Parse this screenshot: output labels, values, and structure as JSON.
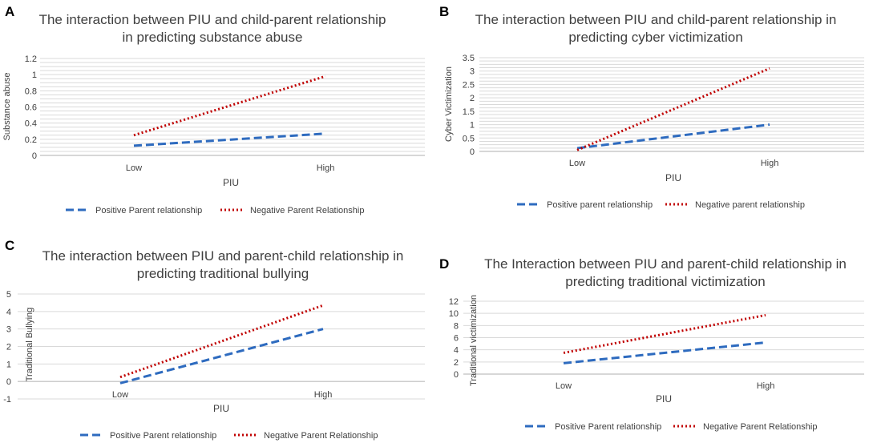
{
  "colors": {
    "positive": "#2e6bbf",
    "negative": "#c00000",
    "grid": "#d9d9d9",
    "axis": "#bfbfbf"
  },
  "chart_data": [
    {
      "panel": "A",
      "type": "line",
      "title_lines": [
        "The interaction between PIU and child-parent relationship",
        "in predicting substance abuse"
      ],
      "xlabel": "PIU",
      "ylabel": "Substance abuse",
      "categories": [
        "Low",
        "High"
      ],
      "yticks": [
        "0",
        "0.2",
        "0.4",
        "0.6",
        "0.8",
        "1",
        "1.2"
      ],
      "ylim": [
        0,
        1.2
      ],
      "grid_step": 0.05,
      "series": [
        {
          "name": "Positive Parent relationship",
          "style": "dashed",
          "values": [
            0.12,
            0.27
          ]
        },
        {
          "name": "Negative Parent Relationship",
          "style": "dotted",
          "values": [
            0.25,
            0.98
          ]
        }
      ]
    },
    {
      "panel": "B",
      "type": "line",
      "title_lines": [
        "The interaction between PIU and child-parent relationship in",
        "predicting cyber victimization"
      ],
      "xlabel": "PIU",
      "ylabel": "Cyber Victimization",
      "categories": [
        "Low",
        "High"
      ],
      "yticks": [
        "0",
        "0.5",
        "1",
        "1.5",
        "2",
        "2.5",
        "3",
        "3.5"
      ],
      "ylim": [
        0,
        3.5
      ],
      "grid_step": 0.125,
      "series": [
        {
          "name": "Positive parent relationship",
          "style": "dashed",
          "values": [
            0.12,
            1.0
          ]
        },
        {
          "name": "Negative parent relationship",
          "style": "dotted",
          "values": [
            0.05,
            3.1
          ]
        }
      ]
    },
    {
      "panel": "C",
      "type": "line",
      "title_lines": [
        "The interaction between PIU and parent-child relationship in",
        "predicting traditional bullying"
      ],
      "xlabel": "PIU",
      "ylabel": "Traditional Bullying",
      "categories": [
        "Low",
        "High"
      ],
      "yticks": [
        "-1",
        "0",
        "1",
        "2",
        "3",
        "4",
        "5"
      ],
      "ylim": [
        -1,
        5
      ],
      "grid_step": 1,
      "series": [
        {
          "name": "Positive Parent relationship",
          "style": "dashed",
          "values": [
            -0.1,
            3.0
          ]
        },
        {
          "name": "Negative Parent Relationship",
          "style": "dotted",
          "values": [
            0.25,
            4.35
          ]
        }
      ]
    },
    {
      "panel": "D",
      "type": "line",
      "title_lines": [
        "The Interaction between PIU and parent-child relationship in",
        "predicting traditional victimization"
      ],
      "xlabel": "PIU",
      "ylabel": "Traditional victimization",
      "categories": [
        "Low",
        "High"
      ],
      "yticks": [
        "0",
        "2",
        "4",
        "6",
        "8",
        "10",
        "12"
      ],
      "ylim": [
        0,
        12
      ],
      "grid_step": 2,
      "series": [
        {
          "name": "Positive Parent relationship",
          "style": "dashed",
          "values": [
            1.8,
            5.2
          ]
        },
        {
          "name": "Negative Parent Relationship",
          "style": "dotted",
          "values": [
            3.5,
            9.7
          ]
        }
      ]
    }
  ]
}
